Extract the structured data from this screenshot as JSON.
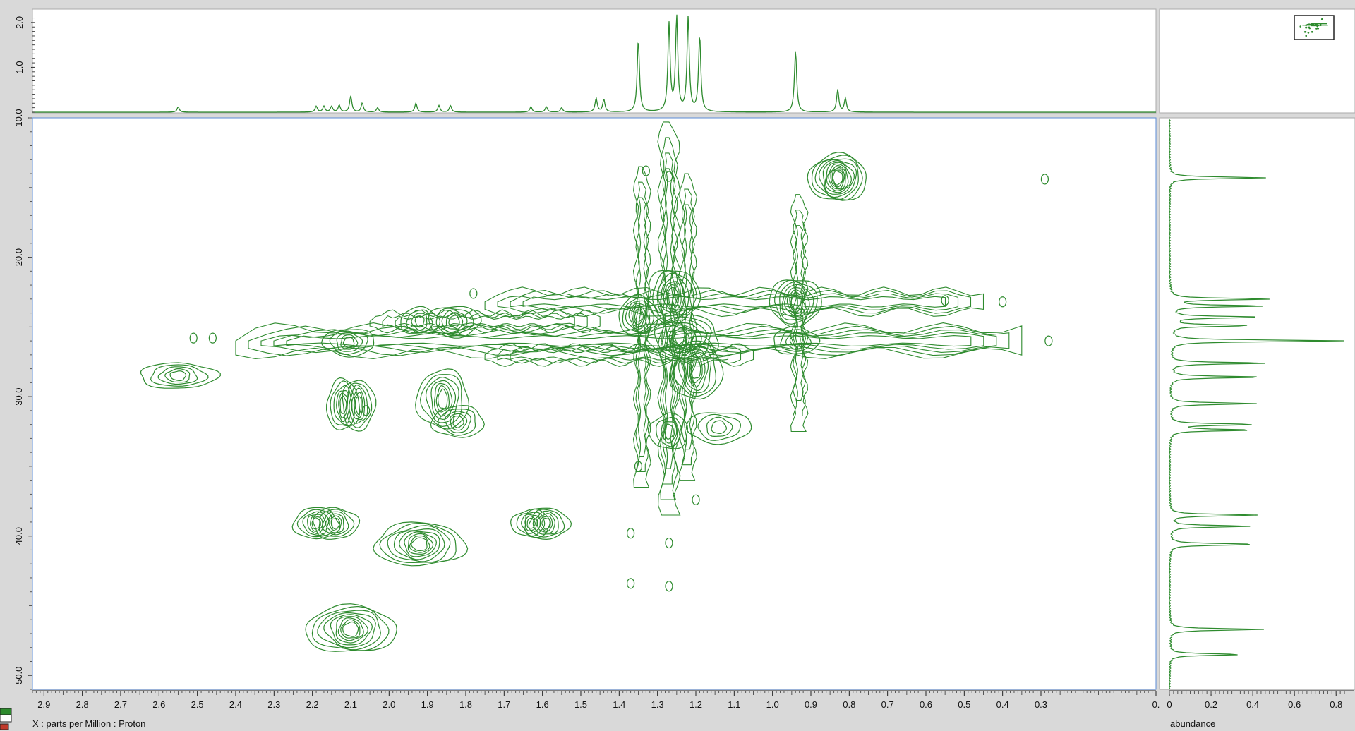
{
  "chart_data": {
    "type": "contour",
    "x_axis": {
      "label": "X : parts per Million : Proton",
      "range": [
        2.93,
        0.0
      ],
      "tick_labels": [
        "2.9",
        "2.8",
        "2.7",
        "2.6",
        "2.5",
        "2.4",
        "2.3",
        "2.2",
        "2.1",
        "2.0",
        "1.9",
        "1.8",
        "1.7",
        "1.6",
        "1.5",
        "1.4",
        "1.3",
        "1.2",
        "1.1",
        "1.0",
        "0.9",
        "0.8",
        "0.7",
        "0.6",
        "0.5",
        "0.4",
        "0.3",
        "0."
      ]
    },
    "y_axis": {
      "range": [
        10.0,
        51.0
      ],
      "tick_labels": [
        "10.0",
        "20.0",
        "30.0",
        "40.0",
        "50.0"
      ]
    },
    "top_projection": {
      "tick_labels": [
        "1.0",
        "2.0"
      ],
      "peaks": [
        {
          "x": 2.55,
          "h": 0.12
        },
        {
          "x": 2.19,
          "h": 0.13
        },
        {
          "x": 2.17,
          "h": 0.13
        },
        {
          "x": 2.15,
          "h": 0.13
        },
        {
          "x": 2.13,
          "h": 0.15
        },
        {
          "x": 2.1,
          "h": 0.36
        },
        {
          "x": 2.07,
          "h": 0.2
        },
        {
          "x": 2.03,
          "h": 0.1
        },
        {
          "x": 1.93,
          "h": 0.2
        },
        {
          "x": 1.87,
          "h": 0.15
        },
        {
          "x": 1.84,
          "h": 0.15
        },
        {
          "x": 1.63,
          "h": 0.12
        },
        {
          "x": 1.59,
          "h": 0.12
        },
        {
          "x": 1.55,
          "h": 0.1
        },
        {
          "x": 1.46,
          "h": 0.3
        },
        {
          "x": 1.44,
          "h": 0.28
        },
        {
          "x": 1.35,
          "h": 1.62
        },
        {
          "x": 1.27,
          "h": 1.95
        },
        {
          "x": 1.25,
          "h": 2.1
        },
        {
          "x": 1.22,
          "h": 2.1
        },
        {
          "x": 1.19,
          "h": 1.7
        },
        {
          "x": 0.94,
          "h": 1.38
        },
        {
          "x": 0.83,
          "h": 0.5
        },
        {
          "x": 0.81,
          "h": 0.3
        }
      ]
    },
    "right_projection": {
      "xlabel": "abundance",
      "tick_labels": [
        "0",
        "0.2",
        "0.4",
        "0.6",
        "0.8"
      ],
      "peaks": [
        {
          "y": 14.3,
          "a": 0.46
        },
        {
          "y": 23.0,
          "a": 0.48
        },
        {
          "y": 23.5,
          "a": 0.45
        },
        {
          "y": 24.3,
          "a": 0.45
        },
        {
          "y": 24.9,
          "a": 0.39
        },
        {
          "y": 26.0,
          "a": 0.84
        },
        {
          "y": 27.6,
          "a": 0.47
        },
        {
          "y": 28.6,
          "a": 0.46
        },
        {
          "y": 30.5,
          "a": 0.42
        },
        {
          "y": 32.0,
          "a": 0.41
        },
        {
          "y": 32.4,
          "a": 0.4
        },
        {
          "y": 38.5,
          "a": 0.42
        },
        {
          "y": 39.3,
          "a": 0.39
        },
        {
          "y": 40.6,
          "a": 0.43
        },
        {
          "y": 46.7,
          "a": 0.45
        },
        {
          "y": 48.5,
          "a": 0.35
        }
      ]
    },
    "cross_peaks": [
      {
        "x": 0.83,
        "y": 14.3,
        "rx": 0.045,
        "ry": 1.2,
        "n": 11
      },
      {
        "x": 2.55,
        "y": 28.5,
        "rx": 0.06,
        "ry": 0.65,
        "n": 5
      },
      {
        "x": 2.105,
        "y": 26.1,
        "rx": 0.04,
        "ry": 0.7,
        "n": 5
      },
      {
        "x": 2.12,
        "y": 30.6,
        "rx": 0.025,
        "ry": 1.3,
        "n": 6
      },
      {
        "x": 2.08,
        "y": 30.6,
        "rx": 0.025,
        "ry": 1.3,
        "n": 6
      },
      {
        "x": 1.86,
        "y": 30.2,
        "rx": 0.04,
        "ry": 1.5,
        "n": 7
      },
      {
        "x": 1.82,
        "y": 31.8,
        "rx": 0.04,
        "ry": 0.8,
        "n": 5
      },
      {
        "x": 1.92,
        "y": 24.6,
        "rx": 0.03,
        "ry": 0.7,
        "n": 4
      },
      {
        "x": 1.83,
        "y": 24.6,
        "rx": 0.04,
        "ry": 0.8,
        "n": 5
      },
      {
        "x": 2.19,
        "y": 39.1,
        "rx": 0.035,
        "ry": 0.8,
        "n": 6
      },
      {
        "x": 2.14,
        "y": 39.1,
        "rx": 0.035,
        "ry": 0.8,
        "n": 6
      },
      {
        "x": 1.92,
        "y": 40.6,
        "rx": 0.07,
        "ry": 1.1,
        "n": 9
      },
      {
        "x": 1.63,
        "y": 39.1,
        "rx": 0.03,
        "ry": 0.7,
        "n": 5
      },
      {
        "x": 1.59,
        "y": 39.1,
        "rx": 0.035,
        "ry": 0.8,
        "n": 6
      },
      {
        "x": 2.1,
        "y": 46.7,
        "rx": 0.07,
        "ry": 1.2,
        "n": 9
      },
      {
        "x": 1.35,
        "y": 24.2,
        "rx": 0.03,
        "ry": 1.0,
        "n": 7
      },
      {
        "x": 1.26,
        "y": 22.8,
        "rx": 0.04,
        "ry": 1.4,
        "n": 7
      },
      {
        "x": 1.24,
        "y": 25.8,
        "rx": 0.06,
        "ry": 1.2,
        "n": 8
      },
      {
        "x": 1.2,
        "y": 28.0,
        "rx": 0.04,
        "ry": 1.6,
        "n": 7
      },
      {
        "x": 0.94,
        "y": 23.2,
        "rx": 0.04,
        "ry": 1.2,
        "n": 8
      },
      {
        "x": 0.94,
        "y": 26.0,
        "rx": 0.035,
        "ry": 0.7,
        "n": 4
      },
      {
        "x": 1.14,
        "y": 32.2,
        "rx": 0.05,
        "ry": 0.8,
        "n": 4
      },
      {
        "x": 1.27,
        "y": 32.5,
        "rx": 0.03,
        "ry": 0.9,
        "n": 4
      }
    ],
    "ridges": [
      {
        "y": 26.0,
        "x0": 2.4,
        "x1": 0.35,
        "n": 5
      },
      {
        "y": 23.2,
        "x0": 1.75,
        "x1": 0.45,
        "n": 4
      },
      {
        "y": 24.6,
        "x0": 2.05,
        "x1": 1.45,
        "n": 3
      },
      {
        "y": 27.0,
        "x0": 1.75,
        "x1": 1.05,
        "n": 3
      }
    ],
    "vertical_ridges": [
      {
        "x": 1.27,
        "y0": 10.3,
        "y1": 38.5,
        "n": 4
      },
      {
        "x": 1.34,
        "y0": 13.5,
        "y1": 36.5,
        "n": 3
      },
      {
        "x": 1.22,
        "y0": 14.0,
        "y1": 36.0,
        "n": 3
      },
      {
        "x": 0.93,
        "y0": 15.5,
        "y1": 32.5,
        "n": 3
      }
    ],
    "islands": [
      {
        "x": 1.33,
        "y": 13.8
      },
      {
        "x": 1.27,
        "y": 14.2
      },
      {
        "x": 1.35,
        "y": 35.0
      },
      {
        "x": 1.2,
        "y": 37.4
      },
      {
        "x": 1.37,
        "y": 39.8
      },
      {
        "x": 1.27,
        "y": 40.5
      },
      {
        "x": 1.37,
        "y": 43.4
      },
      {
        "x": 1.27,
        "y": 43.6
      },
      {
        "x": 2.06,
        "y": 31.0
      },
      {
        "x": 1.78,
        "y": 22.6
      },
      {
        "x": 0.4,
        "y": 23.2
      },
      {
        "x": 0.55,
        "y": 23.1
      },
      {
        "x": 0.29,
        "y": 14.4
      },
      {
        "x": 0.28,
        "y": 26.0
      },
      {
        "x": 2.51,
        "y": 25.8
      },
      {
        "x": 2.46,
        "y": 25.8
      }
    ],
    "color": "#2e8b2e"
  }
}
